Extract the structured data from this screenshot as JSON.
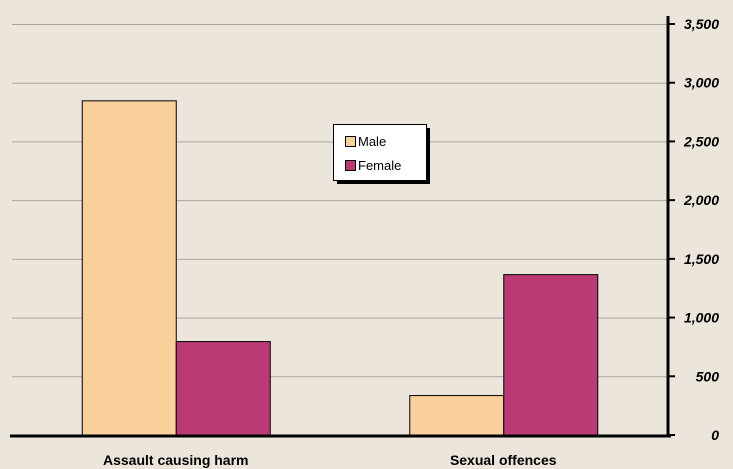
{
  "colors": {
    "background": "#ebe5dc",
    "gridline": "#a9a49c",
    "male": "#f9cf9c",
    "female": "#b93a75",
    "axis": "#000000"
  },
  "chart_data": {
    "type": "bar",
    "categories": [
      "Assault causing harm",
      "Sexual offences"
    ],
    "series": [
      {
        "name": "Male",
        "color": "#f9cf9c",
        "values": [
          2850,
          340
        ]
      },
      {
        "name": "Female",
        "color": "#b93a75",
        "values": [
          800,
          1370
        ]
      }
    ],
    "ylim": [
      0,
      3500
    ],
    "yticks": [
      "0",
      "500",
      "1,000",
      "1,500",
      "2,000",
      "2,500",
      "3,000",
      "3,500"
    ],
    "ytick_values": [
      0,
      500,
      1000,
      1500,
      2000,
      2500,
      3000,
      3500
    ],
    "y_axis_side": "right",
    "grid": true,
    "legend": "center-top",
    "title": "",
    "xlabel": "",
    "ylabel": ""
  }
}
